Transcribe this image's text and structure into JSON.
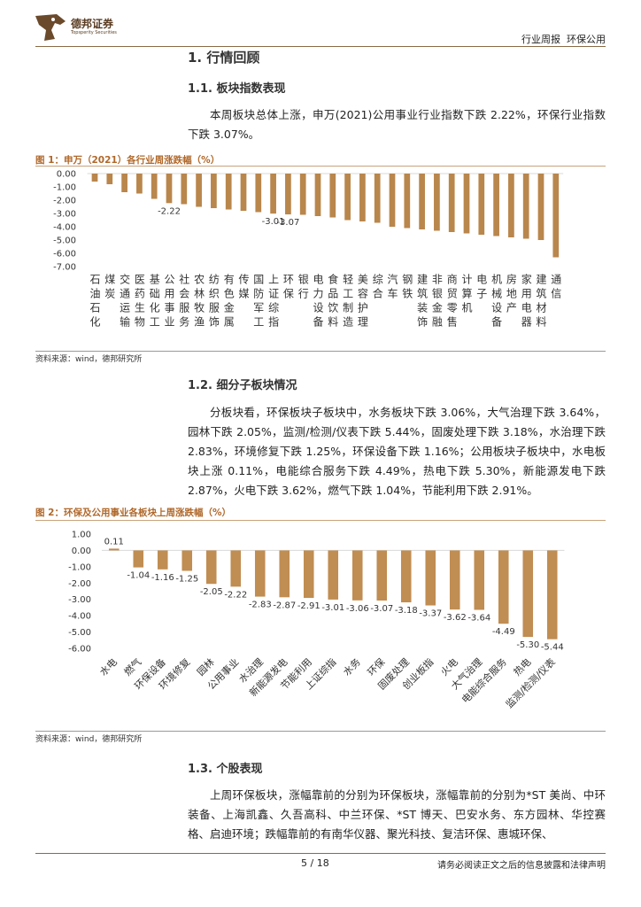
{
  "header": {
    "logo_cn": "德邦证券",
    "logo_en": "Topsperity Securities",
    "report_type": "行业周报  环保公用"
  },
  "sections": [
    {
      "title": "1. 行情回顾"
    },
    {
      "title": "1.1. 板块指数表现",
      "text": "本周板块总体上涨，申万(2021)公用事业行业指数下跌 2.22%，环保行业指数下跌 3.07%。"
    },
    {
      "title": "1.2. 细分子板块情况",
      "text": "分板块看，环保板块子板块中，水务板块下跌 3.06%，大气治理下跌 3.64%，园林下跌 2.05%，监测/检测/仪表下跌 5.44%，固废处理下跌 3.18%，水治理下跌 2.83%，环境修复下跌 1.25%，环保设备下跌 1.16%；公用板块子板块中，水电板块上涨 0.11%，电能综合服务下跌 4.49%，热电下跌 5.30%，新能源发电下跌 2.87%，火电下跌 3.62%，燃气下跌 1.04%，节能利用下跌 2.91%。"
    },
    {
      "title": "1.3. 个股表现",
      "text": "上周环保板块，涨幅靠前的分别为环保板块，涨幅靠前的分别为*ST 美尚、中环装备、上海凯鑫、久吾高科、中兰环保、*ST 博天、巴安水务、东方园林、华控赛格、启迪环境；跌幅靠前的有南华仪器、聚光科技、复洁环保、惠城环保、"
    }
  ],
  "sources": [
    "资料来源：wind，德邦研究所",
    "资料来源：wind，德邦研究所"
  ],
  "footer": {
    "page": "5 / 18",
    "disclaimer": "请务必阅读正文之后的信息披露和法律声明"
  },
  "chart_data": [
    {
      "type": "bar",
      "title": "图 1：申万（2021）各行业周涨跌幅（%）",
      "color": "#b9864c",
      "label_style": "vertical",
      "categories": [
        "石油石化",
        "煤炭",
        "交通运输",
        "医药生物",
        "基础化工",
        "公用事业",
        "社会服务",
        "农林牧渔",
        "纺织服饰",
        "有色金属",
        "传媒",
        "国防军工",
        "上证综指",
        "环保",
        "银行",
        "电力设备",
        "食品饮料",
        "轻工制造",
        "美容护理",
        "综合",
        "汽车",
        "钢铁",
        "建筑装饰",
        "非银金融",
        "商贸零售",
        "计算机",
        "电子",
        "机械设备",
        "房地产",
        "家用电器",
        "建筑材料",
        "通信"
      ],
      "values": [
        -0.6,
        -0.8,
        -1.4,
        -1.5,
        -1.9,
        -2.22,
        -2.3,
        -2.5,
        -2.6,
        -2.7,
        -2.8,
        -2.9,
        -3.01,
        -3.07,
        -3.1,
        -3.2,
        -3.3,
        -3.5,
        -3.6,
        -3.7,
        -4.0,
        -4.1,
        -4.2,
        -4.3,
        -4.4,
        -4.5,
        -4.6,
        -4.7,
        -4.8,
        -4.9,
        -5.0,
        -6.3
      ],
      "value_labels": [
        null,
        null,
        null,
        null,
        null,
        "-2.22",
        null,
        null,
        null,
        null,
        null,
        null,
        "-3.01",
        "-3.07",
        null,
        null,
        null,
        null,
        null,
        null,
        null,
        null,
        null,
        null,
        null,
        null,
        null,
        null,
        null,
        null,
        null,
        null
      ],
      "ylim": [
        -7,
        0
      ],
      "yticks": [
        {
          "value": 0,
          "label": "0.00"
        },
        {
          "value": -1,
          "label": "-1.00"
        },
        {
          "value": -2,
          "label": "-2.00"
        },
        {
          "value": -3,
          "label": "-3.00"
        },
        {
          "value": -4,
          "label": "-4.00"
        },
        {
          "value": -5,
          "label": "-5.00"
        },
        {
          "value": -6,
          "label": "-6.00"
        },
        {
          "value": -7,
          "label": "-7.00"
        }
      ]
    },
    {
      "type": "bar",
      "title": "图 2：环保及公用事业各板块上周涨跌幅（%）",
      "color": "#c08d52",
      "label_style": "rotated",
      "categories": [
        "水电",
        "燃气",
        "环保设备",
        "环境修复",
        "园林",
        "公用事业",
        "水治理",
        "新能源发电",
        "节能利用",
        "上证综指",
        "水务",
        "环保",
        "固废处理",
        "创业板指",
        "火电",
        "大气治理",
        "电能综合服务",
        "热电",
        "监测/检测/仪表"
      ],
      "values": [
        0.11,
        -1.04,
        -1.16,
        -1.25,
        -2.05,
        -2.22,
        -2.83,
        -2.87,
        -2.91,
        -3.01,
        -3.06,
        -3.07,
        -3.18,
        -3.37,
        -3.62,
        -3.64,
        -4.49,
        -5.3,
        -5.44
      ],
      "value_labels": [
        "0.11",
        "-1.04",
        "-1.16",
        "-1.25",
        "-2.05",
        "-2.22",
        "-2.83",
        "-2.87",
        "-2.91",
        "-3.01",
        "-3.06",
        "-3.07",
        "-3.18",
        "-3.37",
        "-3.62",
        "-3.64",
        "-4.49",
        "-5.30",
        "-5.44"
      ],
      "ylim": [
        -6,
        1
      ],
      "yticks": [
        {
          "value": 1,
          "label": "1.00"
        },
        {
          "value": 0,
          "label": "0.00"
        },
        {
          "value": -1,
          "label": "-1.00"
        },
        {
          "value": -2,
          "label": "-2.00"
        },
        {
          "value": -3,
          "label": "-3.00"
        },
        {
          "value": -4,
          "label": "-4.00"
        },
        {
          "value": -5,
          "label": "-5.00"
        },
        {
          "value": -6,
          "label": "-6.00"
        }
      ]
    }
  ]
}
